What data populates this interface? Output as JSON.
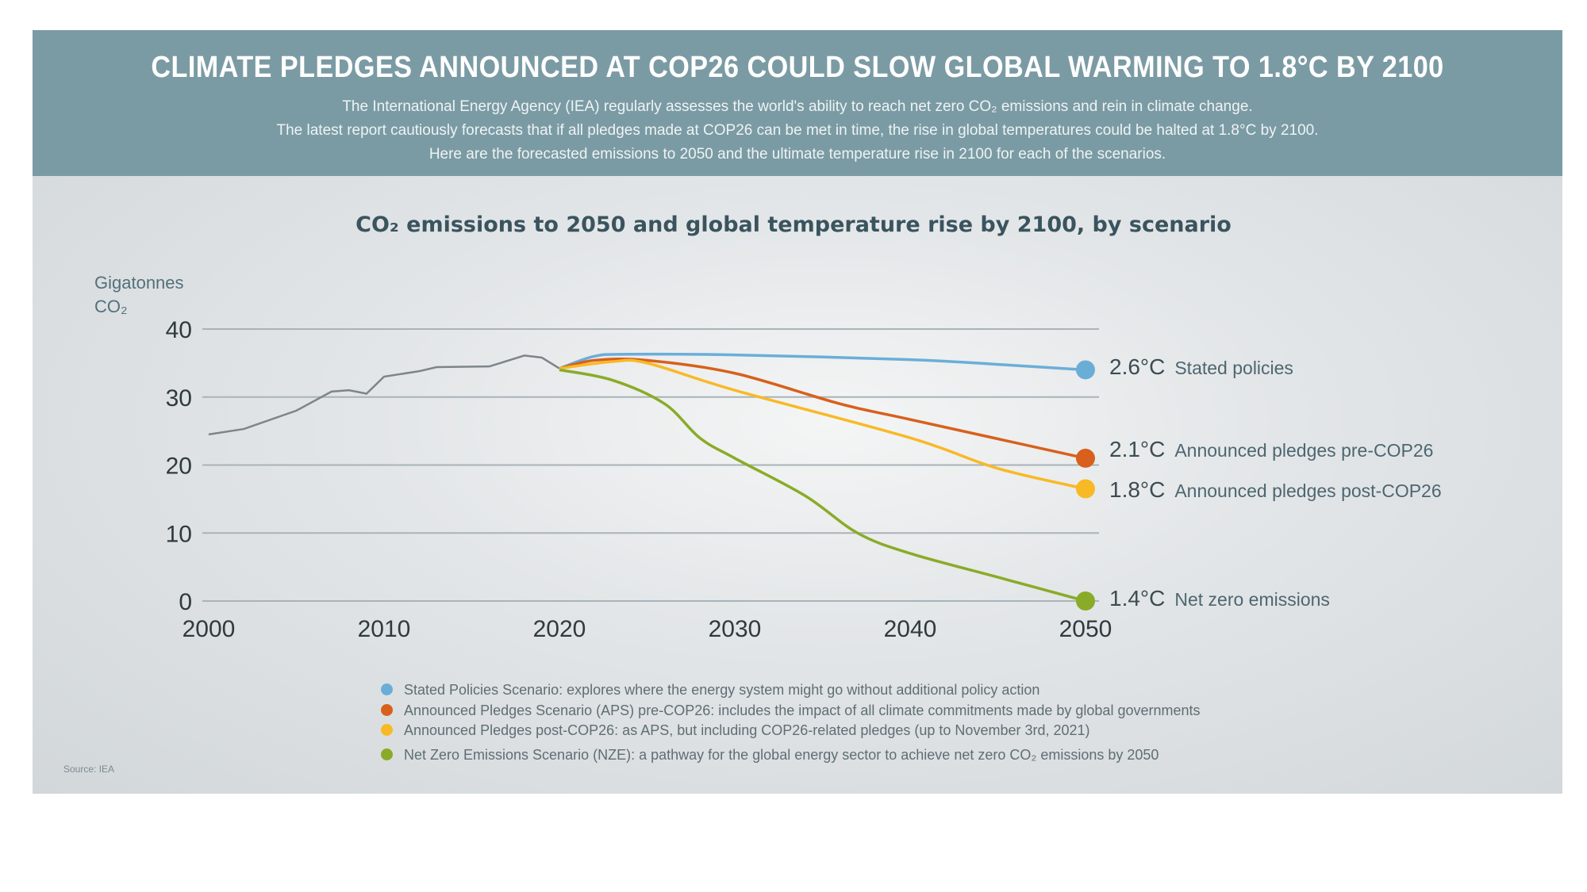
{
  "header": {
    "title": "CLIMATE PLEDGES ANNOUNCED AT COP26 COULD SLOW GLOBAL WARMING TO 1.8°C BY 2100",
    "lines": [
      "The International Energy Agency (IEA) regularly assesses the world's ability to reach net zero CO₂ emissions and rein in climate change.",
      "The latest report cautiously forecasts that if all pledges made at COP26 can be met in time, the rise in global temperatures could be halted at 1.8°C by 2100.",
      "Here are the forecasted emissions to 2050 and the ultimate temperature rise in 2100 for each of the scenarios."
    ]
  },
  "source": "Source: IEA",
  "chart_data": {
    "type": "line",
    "title": "CO₂ emissions to 2050 and global temperature rise by 2100, by scenario",
    "ylabel_line1": "Gigatonnes",
    "ylabel_line2": "CO₂",
    "xlim": [
      2000,
      2050
    ],
    "ylim": [
      0,
      40
    ],
    "xticks": [
      "2000",
      "2010",
      "2020",
      "2030",
      "2040",
      "2050"
    ],
    "yticks": [
      "0",
      "10",
      "20",
      "30",
      "40"
    ],
    "grid": true,
    "legend_placement": "bottom",
    "historical": {
      "color": "#7d858a",
      "x": [
        2000,
        2002,
        2005,
        2007,
        2008,
        2009,
        2010,
        2012,
        2013,
        2016,
        2018,
        2019,
        2020
      ],
      "y": [
        24.5,
        25.3,
        28.0,
        30.8,
        31.0,
        30.5,
        33.0,
        33.8,
        34.4,
        34.5,
        36.1,
        35.8,
        34.2
      ]
    },
    "series": [
      {
        "name": "Stated policies",
        "temperature": "2.6°C",
        "color": "#6aaed8",
        "legend": "Stated Policies Scenario: explores where the energy system might go without additional policy action",
        "x": [
          2020,
          2022,
          2024,
          2030,
          2040,
          2045,
          2050
        ],
        "y": [
          34.2,
          36.0,
          36.3,
          36.2,
          35.5,
          34.8,
          34.0
        ]
      },
      {
        "name": "Announced pledges pre-COP26",
        "temperature": "2.1°C",
        "color": "#d8601c",
        "legend": "Announced Pledges Scenario (APS) pre-COP26: includes the impact of all climate commitments made by global governments",
        "x": [
          2020,
          2022,
          2025,
          2030,
          2036,
          2040,
          2050
        ],
        "y": [
          34.2,
          35.4,
          35.4,
          33.5,
          29.0,
          26.7,
          21.0
        ]
      },
      {
        "name": "Announced pledges post-COP26",
        "temperature": "1.8°C",
        "color": "#f8b926",
        "legend": "Announced Pledges post-COP26: as APS, but including COP26-related pledges (up to November 3rd, 2021)",
        "x": [
          2020,
          2023,
          2025,
          2030,
          2040,
          2045,
          2050
        ],
        "y": [
          34.2,
          35.2,
          35.0,
          31.0,
          24.0,
          19.5,
          16.5
        ]
      },
      {
        "name": "Net zero emissions",
        "temperature": "1.4°C",
        "color": "#8aab27",
        "legend": "Net Zero Emissions Scenario (NZE): a pathway for the global energy sector to achieve net zero CO₂ emissions by 2050",
        "x": [
          2020,
          2023,
          2026,
          2028,
          2030,
          2034,
          2037,
          2040,
          2045,
          2050
        ],
        "y": [
          34.0,
          32.5,
          29.0,
          24.0,
          21.0,
          15.5,
          10.0,
          7.0,
          3.5,
          0.0
        ]
      }
    ]
  }
}
